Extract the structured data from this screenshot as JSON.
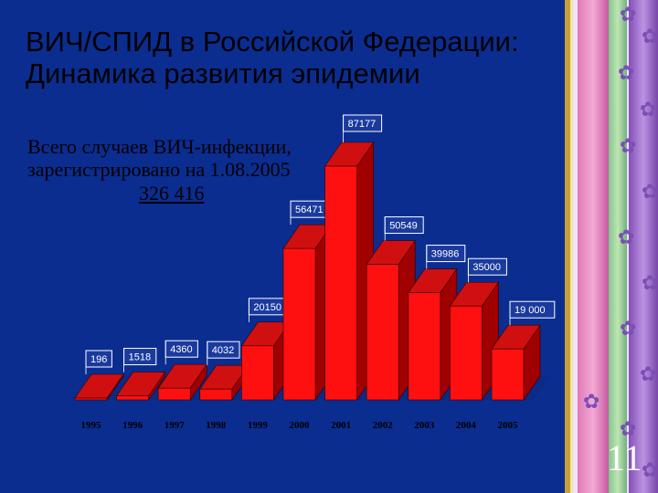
{
  "slide": {
    "title_line1": "ВИЧ/СПИД в Российской Федерации:",
    "title_line2": "Динамика развития эпидемии",
    "note_line1": "Всего случаев ВИЧ-инфекции,",
    "note_line2": "зарегистрировано на 1.08.2005",
    "note_total": "326 416",
    "slide_number": "11"
  },
  "colors": {
    "background": "#0b2d90",
    "bar_front": "#ff1010",
    "bar_side": "#a00000",
    "bar_top": "#d01010"
  },
  "chart_data": {
    "type": "bar",
    "style": "3d",
    "categories": [
      "1995",
      "1996",
      "1997",
      "1998",
      "1999",
      "2000",
      "2001",
      "2002",
      "2003",
      "2004",
      "2005"
    ],
    "values": [
      196,
      1518,
      4360,
      4032,
      20150,
      56471,
      87177,
      50549,
      39986,
      35000,
      19000
    ],
    "value_labels": [
      "196",
      "1518",
      "4360",
      "4032",
      "20150",
      "56471",
      "87177",
      "50549",
      "39986",
      "35000",
      "19 000"
    ],
    "ylim": [
      0,
      87177
    ],
    "grid": false,
    "legend": "none"
  }
}
